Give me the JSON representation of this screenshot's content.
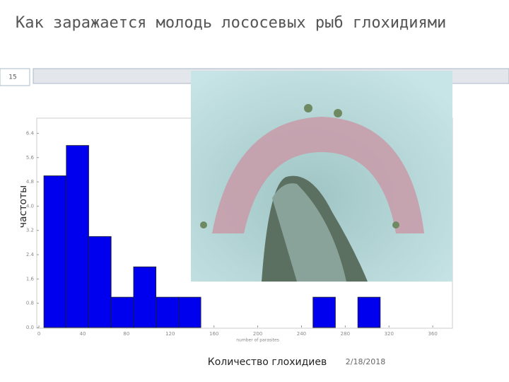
{
  "slide_number": "15",
  "title": "Как заражается молодь лососевых рыб глохидиями",
  "footer_text": "Количество глохидиев",
  "date": "2/18/2018",
  "chart_data": {
    "type": "histogram",
    "y_label": "частоты",
    "x_label": "number of parasites",
    "bins": [
      4.5,
      25,
      45.5,
      66,
      86.5,
      107,
      127.5,
      148,
      168.5,
      189,
      209.5,
      230,
      250.5,
      271,
      291.5,
      312
    ],
    "values": [
      5,
      6,
      3,
      1,
      2,
      1,
      1,
      0,
      0,
      0,
      0,
      0,
      1,
      0,
      1
    ],
    "color": "#0000ee",
    "xlim": [
      -2,
      378
    ],
    "ylim": [
      0,
      6.9
    ],
    "xticks": [
      0,
      40,
      80,
      120,
      160,
      200,
      240,
      280,
      320,
      360
    ],
    "yticks": [
      {
        "value": 0,
        "label": "0.0"
      },
      {
        "value": 0.8,
        "label": "0.8"
      },
      {
        "value": 1.6,
        "label": "1.6"
      },
      {
        "value": 2.4,
        "label": "2.4"
      },
      {
        "value": 3.2,
        "label": "3.2"
      },
      {
        "value": 4,
        "label": "4.0"
      },
      {
        "value": 4.8,
        "label": "4.8"
      },
      {
        "value": 5.6,
        "label": "5.6"
      },
      {
        "value": 6.4,
        "label": "6.4"
      }
    ]
  }
}
